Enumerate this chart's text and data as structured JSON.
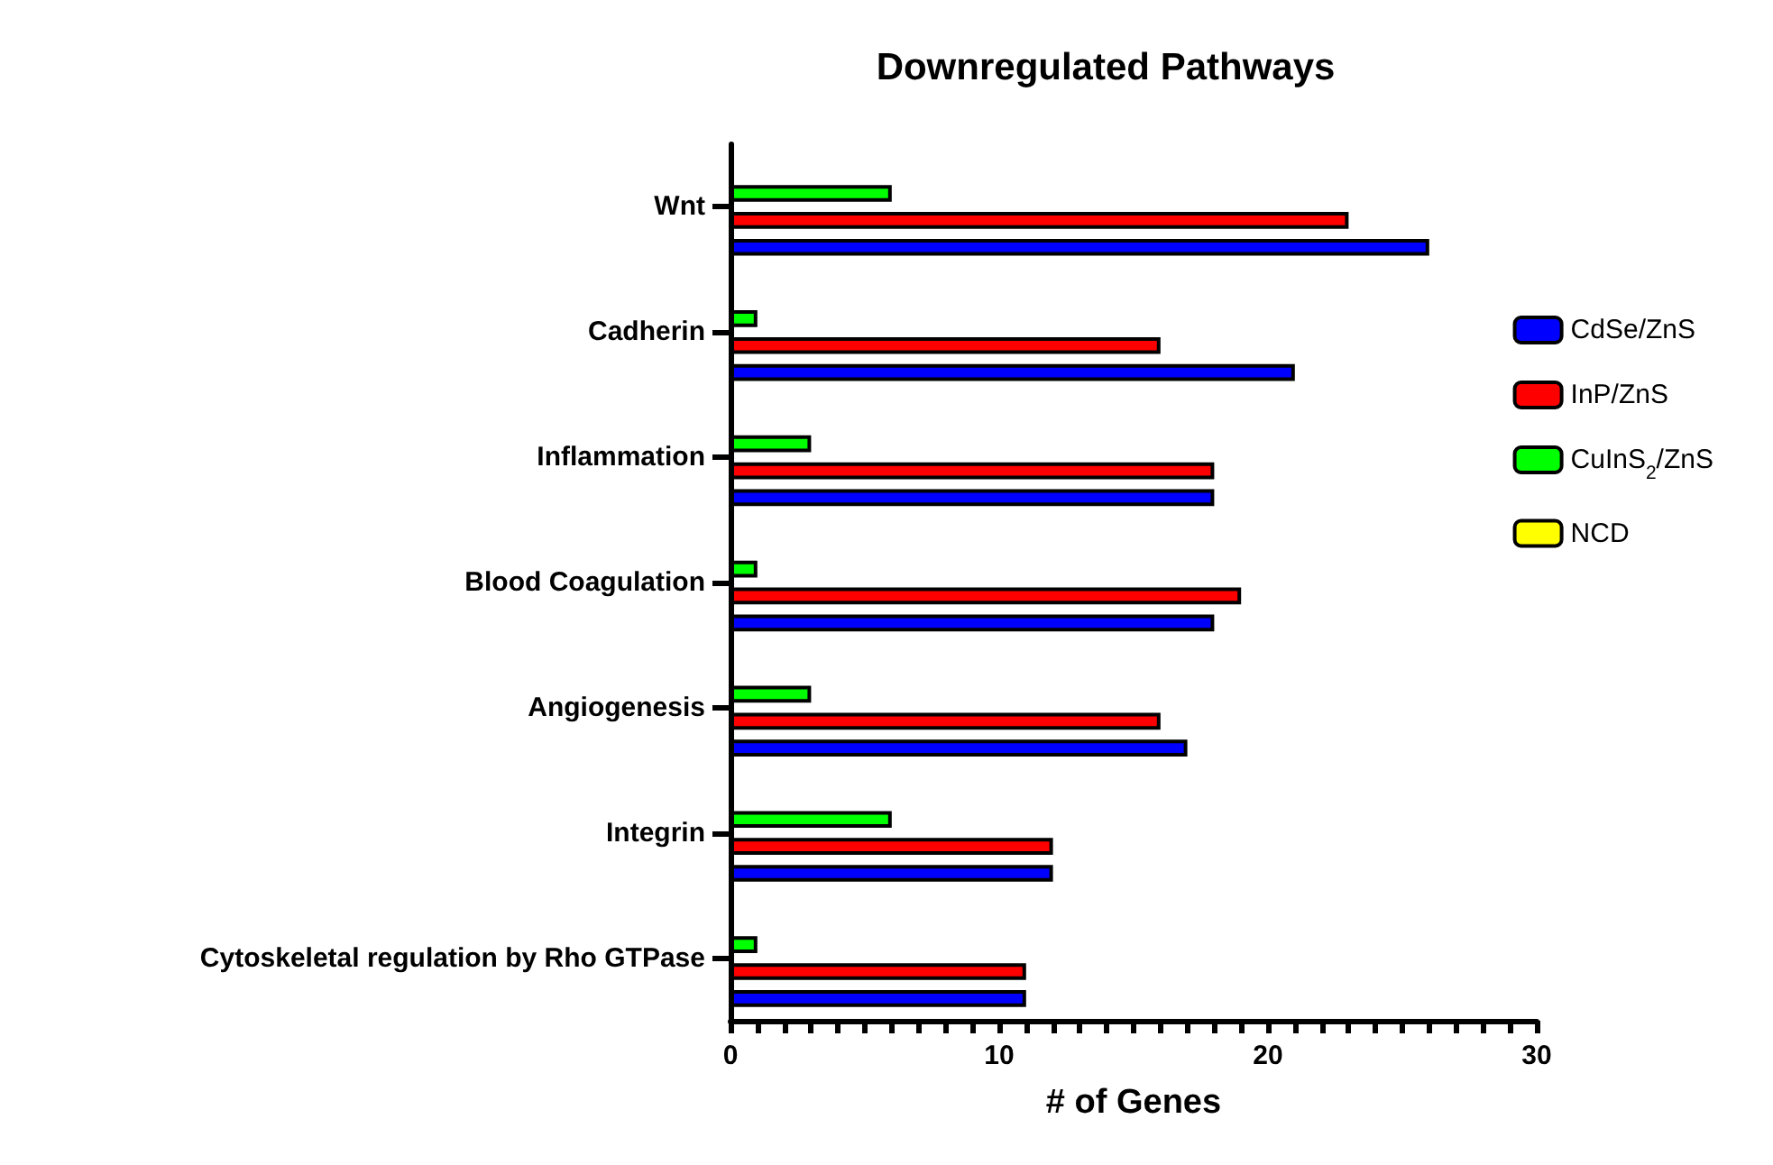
{
  "chart_data": {
    "type": "bar",
    "orientation": "horizontal",
    "title": "Downregulated Pathways",
    "xlabel": "# of Genes",
    "categories": [
      "Wnt",
      "Cadherin",
      "Inflammation",
      "Blood Coagulation",
      "Angiogenesis",
      "Integrin",
      "Cytoskeletal regulation by Rho GTPase"
    ],
    "series": [
      {
        "name": "CdSe/ZnS",
        "color": "#0000ff",
        "values": [
          26,
          21,
          18,
          18,
          17,
          12,
          11
        ]
      },
      {
        "name": "InP/ZnS",
        "color": "#ff0000",
        "values": [
          23,
          16,
          18,
          19,
          16,
          12,
          11
        ]
      },
      {
        "name": "CuInS$_{2}$/ZnS",
        "color": "#00ff00",
        "values": [
          6,
          1,
          3,
          1,
          3,
          6,
          1
        ]
      },
      {
        "name": "NCD",
        "color": "#ffff00",
        "values": [
          0,
          0,
          0,
          0,
          0,
          0,
          0
        ]
      }
    ],
    "xlim": [
      0,
      30
    ],
    "xticks": [
      0,
      {
        "value": 1,
        "label": null
      },
      {
        "value": 2,
        "label": null
      },
      {
        "value": 3,
        "label": null
      },
      {
        "value": 4,
        "label": null
      },
      {
        "value": 5,
        "label": null
      },
      {
        "value": 6,
        "label": null
      },
      {
        "value": 7,
        "label": null
      },
      {
        "value": 8,
        "label": null
      },
      {
        "value": 9,
        "label": null
      },
      10,
      {
        "value": 11,
        "label": null
      },
      {
        "value": 12,
        "label": null
      },
      {
        "value": 13,
        "label": null
      },
      {
        "value": 14,
        "label": null
      },
      {
        "value": 15,
        "label": null
      },
      {
        "value": 16,
        "label": null
      },
      {
        "value": 17,
        "label": null
      },
      {
        "value": 18,
        "label": null
      },
      {
        "value": 19,
        "label": null
      },
      20,
      {
        "value": 21,
        "label": null
      },
      {
        "value": 22,
        "label": null
      },
      {
        "value": 23,
        "label": null
      },
      {
        "value": 24,
        "label": null
      },
      {
        "value": 25,
        "label": null
      },
      {
        "value": 26,
        "label": null
      },
      {
        "value": 27,
        "label": null
      },
      {
        "value": 28,
        "label": null
      },
      {
        "value": 29,
        "label": null
      },
      30
    ],
    "grid": false,
    "legend": "right"
  }
}
